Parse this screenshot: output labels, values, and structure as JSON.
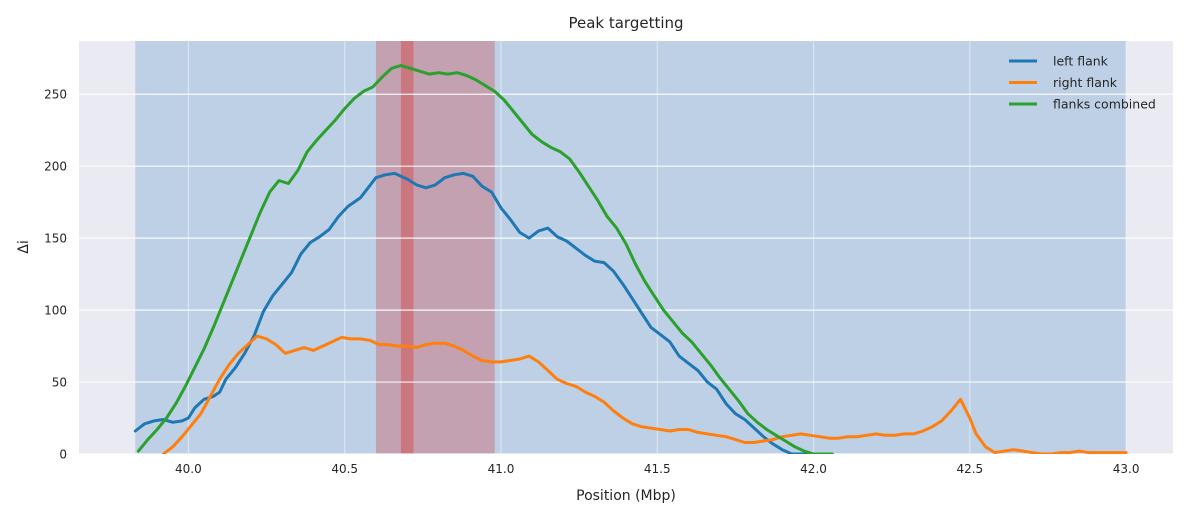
{
  "chart_data": {
    "type": "line",
    "title": "Peak targetting",
    "xlabel": "Position (Mbp)",
    "ylabel": "Δi",
    "xlim": [
      39.65,
      43.15
    ],
    "ylim": [
      0,
      287
    ],
    "xticks": [
      40.0,
      40.5,
      41.0,
      41.5,
      42.0,
      42.5,
      43.0
    ],
    "xtick_labels": [
      "40.0",
      "40.5",
      "41.0",
      "41.5",
      "42.0",
      "42.5",
      "43.0"
    ],
    "yticks": [
      0,
      50,
      100,
      150,
      200,
      250
    ],
    "ytick_labels": [
      "0",
      "50",
      "100",
      "150",
      "200",
      "250"
    ],
    "grid": true,
    "legend_position": "top-right",
    "background_color": "#eaeaf2",
    "spans": [
      {
        "x0": 39.83,
        "x1": 43.0,
        "color": "#1f77b4",
        "opacity": 0.22
      },
      {
        "x0": 40.6,
        "x1": 40.98,
        "color": "#d62728",
        "opacity": 0.28
      },
      {
        "x0": 40.68,
        "x1": 40.72,
        "color": "#d62728",
        "opacity": 0.35
      }
    ],
    "series": [
      {
        "name": "left flank",
        "color": "#1f77b4",
        "x": [
          39.83,
          39.86,
          39.89,
          39.92,
          39.95,
          39.98,
          40.0,
          40.02,
          40.05,
          40.08,
          40.1,
          40.12,
          40.15,
          40.18,
          40.21,
          40.24,
          40.27,
          40.3,
          40.33,
          40.36,
          40.39,
          40.42,
          40.45,
          40.48,
          40.51,
          40.55,
          40.6,
          40.63,
          40.66,
          40.7,
          40.73,
          40.76,
          40.79,
          40.82,
          40.85,
          40.88,
          40.91,
          40.94,
          40.97,
          41.0,
          41.03,
          41.06,
          41.09,
          41.12,
          41.15,
          41.18,
          41.21,
          41.24,
          41.27,
          41.3,
          41.33,
          41.36,
          41.39,
          41.42,
          41.45,
          41.48,
          41.51,
          41.54,
          41.57,
          41.6,
          41.63,
          41.66,
          41.69,
          41.72,
          41.75,
          41.78,
          41.81,
          41.84,
          41.87,
          41.9,
          41.93,
          41.96,
          42.0
        ],
        "y": [
          16,
          21,
          23,
          24,
          22,
          23,
          25,
          32,
          38,
          40,
          43,
          52,
          60,
          70,
          82,
          99,
          110,
          118,
          126,
          139,
          147,
          151,
          156,
          165,
          172,
          178,
          192,
          194,
          195,
          191,
          187,
          185,
          187,
          192,
          194,
          195,
          193,
          186,
          182,
          171,
          163,
          154,
          150,
          155,
          157,
          151,
          148,
          143,
          138,
          134,
          133,
          127,
          118,
          108,
          98,
          88,
          83,
          78,
          68,
          63,
          58,
          50,
          45,
          35,
          28,
          24,
          18,
          12,
          7,
          3,
          0,
          0,
          0
        ]
      },
      {
        "name": "right flank",
        "color": "#ff7f0e",
        "x": [
          39.92,
          39.95,
          39.98,
          40.01,
          40.04,
          40.07,
          40.1,
          40.13,
          40.16,
          40.19,
          40.22,
          40.25,
          40.28,
          40.31,
          40.34,
          40.37,
          40.4,
          40.43,
          40.46,
          40.49,
          40.52,
          40.55,
          40.58,
          40.61,
          40.64,
          40.67,
          40.7,
          40.73,
          40.76,
          40.79,
          40.82,
          40.85,
          40.88,
          40.91,
          40.94,
          40.97,
          41.0,
          41.03,
          41.06,
          41.09,
          41.12,
          41.15,
          41.18,
          41.21,
          41.24,
          41.27,
          41.3,
          41.33,
          41.36,
          41.39,
          41.42,
          41.45,
          41.48,
          41.51,
          41.54,
          41.57,
          41.6,
          41.63,
          41.66,
          41.69,
          41.72,
          41.75,
          41.78,
          41.81,
          41.84,
          41.87,
          41.9,
          41.93,
          41.96,
          41.99,
          42.02,
          42.05,
          42.08,
          42.11,
          42.14,
          42.17,
          42.2,
          42.23,
          42.26,
          42.29,
          42.32,
          42.35,
          42.38,
          42.41,
          42.44,
          42.47,
          42.5,
          42.52,
          42.55,
          42.58,
          42.61,
          42.64,
          42.67,
          42.7,
          42.73,
          42.76,
          42.79,
          42.82,
          42.85,
          42.88,
          42.91,
          42.94,
          42.97,
          43.0
        ],
        "y": [
          0,
          5,
          12,
          20,
          28,
          40,
          52,
          62,
          70,
          76,
          82,
          80,
          76,
          70,
          72,
          74,
          72,
          75,
          78,
          81,
          80,
          80,
          79,
          76,
          76,
          75,
          75,
          74,
          76,
          77,
          77,
          75,
          72,
          68,
          65,
          64,
          64,
          65,
          66,
          68,
          64,
          58,
          52,
          49,
          47,
          43,
          40,
          36,
          30,
          25,
          21,
          19,
          18,
          17,
          16,
          17,
          17,
          15,
          14,
          13,
          12,
          10,
          8,
          8,
          9,
          10,
          12,
          13,
          14,
          13,
          12,
          11,
          11,
          12,
          12,
          13,
          14,
          13,
          13,
          14,
          14,
          16,
          19,
          23,
          30,
          38,
          25,
          14,
          5,
          1,
          2,
          3,
          2,
          1,
          0,
          0,
          1,
          1,
          2,
          1,
          1,
          1,
          1,
          1
        ]
      },
      {
        "name": "flanks combined",
        "color": "#2ca02c",
        "x": [
          39.84,
          39.87,
          39.9,
          39.93,
          39.96,
          39.99,
          40.02,
          40.05,
          40.08,
          40.11,
          40.14,
          40.17,
          40.2,
          40.23,
          40.26,
          40.29,
          40.32,
          40.35,
          40.38,
          40.41,
          40.44,
          40.47,
          40.5,
          40.53,
          40.56,
          40.59,
          40.62,
          40.65,
          40.68,
          40.71,
          40.74,
          40.77,
          40.8,
          40.83,
          40.86,
          40.89,
          40.92,
          40.95,
          40.98,
          41.01,
          41.04,
          41.07,
          41.1,
          41.13,
          41.16,
          41.19,
          41.22,
          41.25,
          41.28,
          41.31,
          41.34,
          41.37,
          41.4,
          41.43,
          41.46,
          41.49,
          41.52,
          41.55,
          41.58,
          41.61,
          41.64,
          41.67,
          41.7,
          41.73,
          41.76,
          41.79,
          41.82,
          41.85,
          41.88,
          41.91,
          41.94,
          41.97,
          42.0,
          42.03,
          42.06
        ],
        "y": [
          2,
          10,
          17,
          25,
          35,
          47,
          60,
          73,
          88,
          104,
          120,
          136,
          152,
          168,
          182,
          190,
          188,
          197,
          210,
          218,
          225,
          232,
          240,
          247,
          252,
          255,
          262,
          268,
          270,
          268,
          266,
          264,
          265,
          264,
          265,
          263,
          260,
          256,
          252,
          246,
          238,
          230,
          222,
          217,
          213,
          210,
          205,
          196,
          186,
          176,
          165,
          157,
          146,
          132,
          120,
          110,
          100,
          92,
          84,
          78,
          70,
          62,
          53,
          45,
          37,
          28,
          22,
          17,
          13,
          9,
          5,
          2,
          0,
          0,
          0
        ]
      }
    ]
  }
}
